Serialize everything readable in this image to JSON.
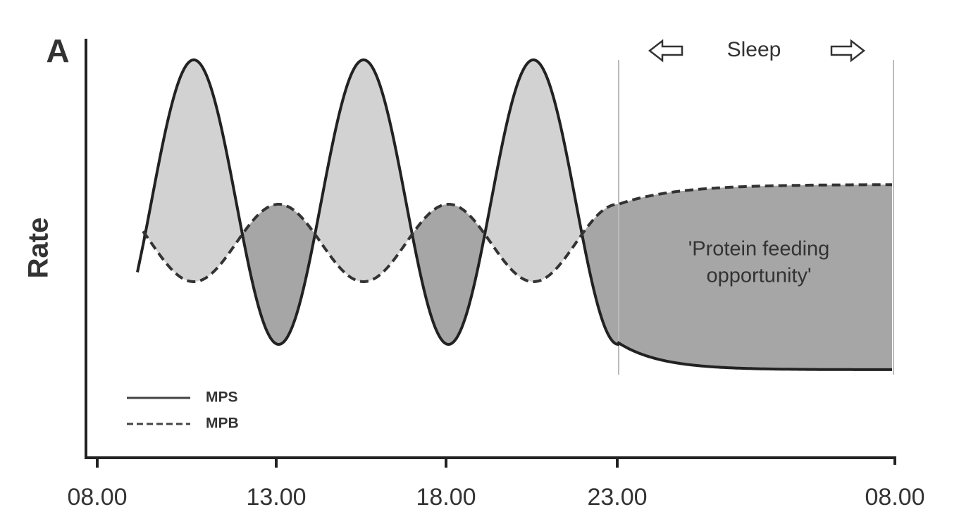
{
  "panel_label": "A",
  "y_axis_label": "Rate",
  "x_ticks": [
    "08.00",
    "13.00",
    "18.00",
    "23.00",
    "08.00"
  ],
  "legend": [
    "MPS",
    "MPB"
  ],
  "sleep_label": "Sleep",
  "annotation": [
    "'Protein feeding",
    "opportunity'"
  ]
}
